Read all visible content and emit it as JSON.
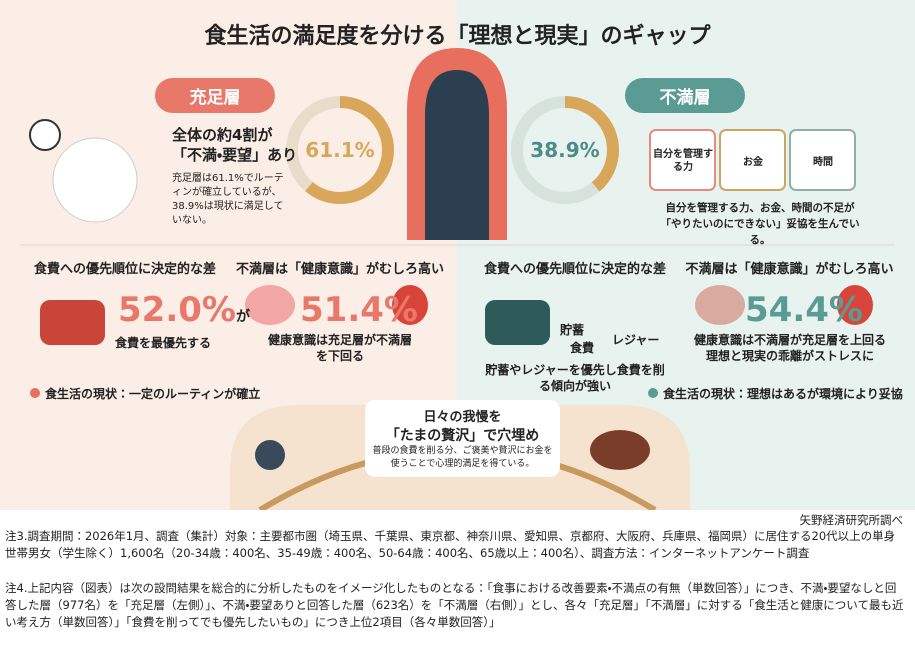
{
  "header": {
    "title": "食生活の満足度を分ける「理想と現実」のギャップ"
  },
  "satisfied": {
    "tag": "充足層",
    "percent": 61.1,
    "percent_label": "61.1%",
    "headline": [
      "全体の約4割が",
      "「不満・要望」あり"
    ],
    "description": "充足層は61.1%でルーティンが確立しているが、38.9%は現状に満足していない。",
    "panels": [
      {
        "title": "食費への優先順位に決定的な差",
        "big": "52.0%",
        "suffix": "が",
        "caption": "食費を最優先する"
      },
      {
        "title": "不満層は「健康意識」がむしろ高い",
        "big": "51.4%",
        "caption": "健康意識は充足層が不満層を下回る"
      }
    ],
    "footer": "食生活の現状：一定のルーティンが確立"
  },
  "unsatisfied": {
    "tag": "不満層",
    "percent": 38.9,
    "percent_label": "38.9%",
    "jars": [
      "自分を管理する力",
      "お金",
      "時間"
    ],
    "description": "自分を管理する力、お金、時間の不足が「やりたいのにできない」妥協を生んでいる。",
    "panels": [
      {
        "title": "食費への優先順位に決定的な差",
        "items": [
          "貯蓄",
          "食費",
          "レジャー"
        ],
        "caption": "貯蓄やレジャーを優先し食費を削る傾向が強い"
      },
      {
        "title": "不満層は「健康意識」がむしろ高い",
        "big": "54.4%",
        "caption": "健康意識は不満層が充足層を上回る理想と現実の乖離がストレスに"
      }
    ],
    "footer": "食生活の現状：理想はあるが環境により妥協"
  },
  "bottom": {
    "lead": "日々の我慢を",
    "headline": "「たまの贅沢」で穴埋め",
    "text": "普段の食費を削る分、ご褒美や贅沢にお金を使うことで心理的満足を得ている。"
  },
  "source": "矢野経済研究所調べ",
  "notes": [
    "注3.調査期間：2026年1月、調査（集計）対象：主要都市圏（埼玉県、千葉県、東京都、神奈川県、愛知県、京都府、大阪府、兵庫県、福岡県）に居住する20代以上の単身世帯男女（学生除く）1,600名（20-34歳：400名、35-49歳：400名、50-64歳：400名、65歳以上：400名）、調査方法：インターネットアンケート調査",
    "注4.上記内容（図表）は次の設問結果を総合的に分析したものをイメージ化したものとなる：「食事における改善要素・不満点の有無（単数回答）」につき、不満・要望なしと回答した層（977名）を「充足層（左側）」、不満・要望ありと回答した層（623名）を「不満層（右側）」とし、各々「充足層」「不満層」に対する「食生活と健康について最も近い考え方（単数回答）」「食費を削ってでも優先したいもの」につき上位2項目（各々単数回答）」"
  ]
}
